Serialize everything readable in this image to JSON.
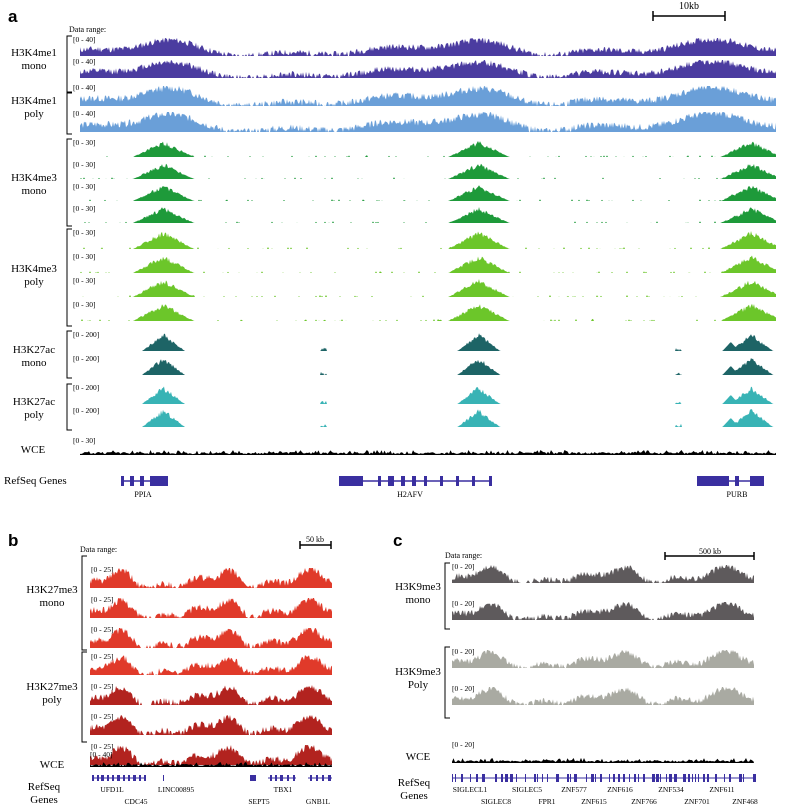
{
  "panels": {
    "a": {
      "letter": "a",
      "data_range_label": "Data range:",
      "scale_bar_label": "10kb",
      "groups": [
        {
          "line1": "H3K4me1",
          "line2": "mono"
        },
        {
          "line1": "H3K4me1",
          "line2": "poly"
        },
        {
          "line1": "H3K4me3",
          "line2": "mono"
        },
        {
          "line1": "H3K4me3",
          "line2": "poly"
        },
        {
          "line1": "H3K27ac",
          "line2": "mono"
        },
        {
          "line1": "H3K27ac",
          "line2": "poly"
        }
      ],
      "wce_label": "WCE",
      "refseq_label": "RefSeq Genes",
      "tracks": [
        {
          "range": "[0 - 40]",
          "color": "#4b3ca0",
          "kind": "broad",
          "seed": 11
        },
        {
          "range": "[0 - 40]",
          "color": "#4b3ca0",
          "kind": "broad",
          "seed": 12
        },
        {
          "range": "[0 - 40]",
          "color": "#6a9fd8",
          "kind": "broad",
          "seed": 13
        },
        {
          "range": "[0 - 40]",
          "color": "#6a9fd8",
          "kind": "broad",
          "seed": 14
        },
        {
          "range": "[0 - 30]",
          "color": "#1e9a3a",
          "kind": "peaks",
          "seed": 21
        },
        {
          "range": "[0 - 30]",
          "color": "#1e9a3a",
          "kind": "peaks",
          "seed": 22
        },
        {
          "range": "[0 - 30]",
          "color": "#1e9a3a",
          "kind": "peaks",
          "seed": 23
        },
        {
          "range": "[0 - 30]",
          "color": "#1e9a3a",
          "kind": "peaks",
          "seed": 24
        },
        {
          "range": "[0 - 30]",
          "color": "#6cc62a",
          "kind": "peaks",
          "seed": 31
        },
        {
          "range": "[0 - 30]",
          "color": "#6cc62a",
          "kind": "peaks",
          "seed": 32
        },
        {
          "range": "[0 - 30]",
          "color": "#6cc62a",
          "kind": "peaks",
          "seed": 33
        },
        {
          "range": "[0 - 30]",
          "color": "#6cc62a",
          "kind": "peaks",
          "seed": 34
        },
        {
          "range": "[0 - 200]",
          "color": "#1d6466",
          "kind": "sharp",
          "seed": 41
        },
        {
          "range": "[0 - 200]",
          "color": "#1d6466",
          "kind": "sharp",
          "seed": 42
        },
        {
          "range": "[0 - 200]",
          "color": "#38b3b5",
          "kind": "sharp",
          "seed": 43
        },
        {
          "range": "[0 - 200]",
          "color": "#38b3b5",
          "kind": "sharp",
          "seed": 44
        },
        {
          "range": "[0 - 30]",
          "color": "#000000",
          "kind": "noise",
          "seed": 51
        }
      ],
      "genes": [
        {
          "name": "PPIA"
        },
        {
          "name": "H2AFV"
        },
        {
          "name": "PURB"
        }
      ]
    },
    "b": {
      "letter": "b",
      "data_range_label": "Data range:",
      "scale_bar_label": "50 kb",
      "groups": [
        {
          "line1": "H3K27me3",
          "line2": "mono"
        },
        {
          "line1": "H3K27me3",
          "line2": "poly"
        }
      ],
      "wce_label": "WCE",
      "refseq_line1": "RefSeq",
      "refseq_line2": "Genes",
      "tracks": [
        {
          "range": "[0 - 25]",
          "color": "#e03a2a",
          "kind": "broad",
          "seed": 61
        },
        {
          "range": "[0 - 25]",
          "color": "#e03a2a",
          "kind": "broad",
          "seed": 62
        },
        {
          "range": "[0 - 25]",
          "color": "#e03a2a",
          "kind": "broad",
          "seed": 63
        },
        {
          "range": "[0 - 25]",
          "color": "#e03a2a",
          "kind": "broad",
          "seed": 64
        },
        {
          "range": "[0 - 25]",
          "color": "#b2231f",
          "kind": "broad",
          "seed": 65
        },
        {
          "range": "[0 - 25]",
          "color": "#b2231f",
          "kind": "broad",
          "seed": 66
        },
        {
          "range": "[0 - 25]",
          "color": "#b2231f",
          "kind": "broad",
          "seed": 67
        },
        {
          "range": "[0 - 40]",
          "color": "#000000",
          "kind": "noise",
          "seed": 68
        }
      ],
      "genes_top": [
        "UFD1L",
        "LINC00895",
        "TBX1"
      ],
      "genes_bottom": [
        "CDC45",
        "SEPT5",
        "GNB1L"
      ]
    },
    "c": {
      "letter": "c",
      "data_range_label": "Data range:",
      "scale_bar_label": "500 kb",
      "groups": [
        {
          "line1": "H3K9me3",
          "line2": "mono"
        },
        {
          "line1": "H3K9me3",
          "line2": "Poly"
        }
      ],
      "wce_label": "WCE",
      "refseq_line1": "RefSeq",
      "refseq_line2": "Genes",
      "tracks": [
        {
          "range": "[0 - 20]",
          "color": "#5e5a5c",
          "kind": "broad",
          "seed": 71
        },
        {
          "range": "[0 - 20]",
          "color": "#5e5a5c",
          "kind": "broad",
          "seed": 72
        },
        {
          "range": "[0 - 20]",
          "color": "#a9aaa2",
          "kind": "broad",
          "seed": 73
        },
        {
          "range": "[0 - 20]",
          "color": "#a9aaa2",
          "kind": "broad",
          "seed": 74
        },
        {
          "range": "[0 - 20]",
          "color": "#000000",
          "kind": "noise",
          "seed": 75
        }
      ],
      "genes_top": [
        "SIGLECL1",
        "SIGLEC5",
        "ZNF577",
        "ZNF616",
        "ZNF534",
        "ZNF611"
      ],
      "genes_bottom": [
        "SIGLEC8",
        "FPR1",
        "ZNF615",
        "ZNF766",
        "ZNF701",
        "ZNF468"
      ]
    }
  },
  "colors": {
    "gene_blue": "#3a2fa0"
  }
}
